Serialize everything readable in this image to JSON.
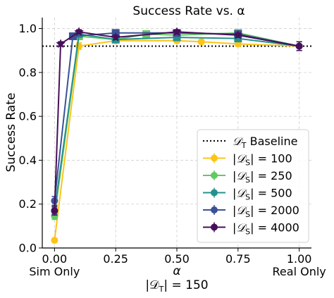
{
  "chart_data": {
    "type": "line",
    "title": "Success Rate vs. α",
    "xlabel": "α",
    "xlabel_sub": "|𝒟",
    "xlabel_sub_sub": "T",
    "xlabel_sub_tail": "| = 150",
    "ylabel": "Success Rate",
    "xlim": [
      -0.05,
      1.05
    ],
    "ylim": [
      0.0,
      1.05
    ],
    "xticks": [
      0.0,
      0.25,
      0.5,
      0.75,
      1.0
    ],
    "xtick_labels": [
      "0.00",
      "0.25",
      "0.50",
      "0.75",
      "1.00"
    ],
    "yticks": [
      0.0,
      0.2,
      0.4,
      0.6,
      0.8,
      1.0
    ],
    "ytick_labels": [
      "0.0",
      "0.2",
      "0.4",
      "0.6",
      "0.8",
      "1.0"
    ],
    "x_annotations": [
      {
        "x": 0.0,
        "text": "Sim Only"
      },
      {
        "x": 1.0,
        "text": "Real Only"
      }
    ],
    "grid": true,
    "legend_position": "lower right",
    "baseline": {
      "y": 0.92,
      "label_prefix": "𝒟",
      "label_sub": "T",
      "label_suffix": " Baseline",
      "color": "#000000"
    },
    "series": [
      {
        "name": "|𝒟S| = 100",
        "size": "100",
        "color": "#fcc418",
        "x": [
          0.0,
          0.1,
          0.25,
          0.5,
          0.6,
          0.75,
          1.0
        ],
        "y": [
          0.035,
          0.92,
          0.945,
          0.945,
          0.94,
          0.93,
          0.92
        ],
        "err": [
          0.008,
          0.015,
          0.01,
          0.01,
          0.01,
          0.01,
          0.02
        ]
      },
      {
        "name": "|𝒟S| = 250",
        "size": "250",
        "color": "#63c960",
        "x": [
          0.0,
          0.1,
          0.25,
          0.375,
          0.5,
          0.75,
          1.0
        ],
        "y": [
          0.145,
          0.965,
          0.95,
          0.975,
          0.97,
          0.98,
          0.92
        ],
        "err": [
          0.015,
          0.015,
          0.01,
          0.01,
          0.01,
          0.01,
          0.02
        ]
      },
      {
        "name": "|𝒟S| = 500",
        "size": "500",
        "color": "#24928c",
        "x": [
          0.0,
          0.1,
          0.25,
          0.5,
          0.75,
          1.0
        ],
        "y": [
          0.17,
          0.975,
          0.95,
          0.96,
          0.955,
          0.92
        ],
        "err": [
          0.015,
          0.012,
          0.01,
          0.01,
          0.01,
          0.02
        ]
      },
      {
        "name": "|𝒟S| = 2000",
        "size": "2000",
        "color": "#3b5196",
        "x": [
          0.0,
          0.075,
          0.25,
          0.5,
          0.75,
          1.0
        ],
        "y": [
          0.215,
          0.965,
          0.98,
          0.98,
          0.975,
          0.92
        ],
        "err": [
          0.02,
          0.01,
          0.01,
          0.01,
          0.01,
          0.02
        ]
      },
      {
        "name": "|𝒟S| = 4000",
        "size": "4000",
        "color": "#470e5a",
        "x": [
          0.0,
          0.025,
          0.1,
          0.25,
          0.5,
          0.75,
          1.0
        ],
        "y": [
          0.17,
          0.93,
          0.985,
          0.96,
          0.985,
          0.97,
          0.92
        ],
        "err": [
          0.02,
          0.01,
          0.01,
          0.01,
          0.01,
          0.01,
          0.02
        ]
      }
    ]
  }
}
